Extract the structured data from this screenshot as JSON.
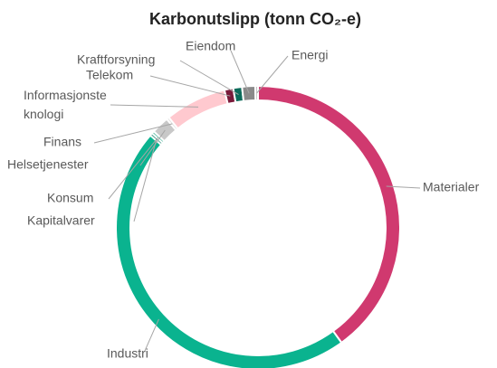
{
  "chart_data": {
    "type": "donut",
    "title": "Karbonutslipp (tonn CO₂-e)",
    "categories": [
      "Materialer",
      "Industri",
      "Kapitalvarer",
      "Konsum",
      "Helsetjenester",
      "Finans",
      "Informasjonsteknologi",
      "Telekom",
      "Kraftforsyning",
      "Eiendom",
      "Energi"
    ],
    "values": [
      40,
      46.3,
      0.3,
      0.3,
      2,
      0.3,
      7,
      1,
      1,
      1.5,
      0.3
    ],
    "colors": [
      "#d0396f",
      "#0ab38f",
      "#2a8f7a",
      "#5fbfa8",
      "#c8c8c8",
      "#e0e0e0",
      "#ffc9cf",
      "#7a1a3a",
      "#0b6b5a",
      "#8a8a8a",
      "#bdbdbd"
    ]
  }
}
